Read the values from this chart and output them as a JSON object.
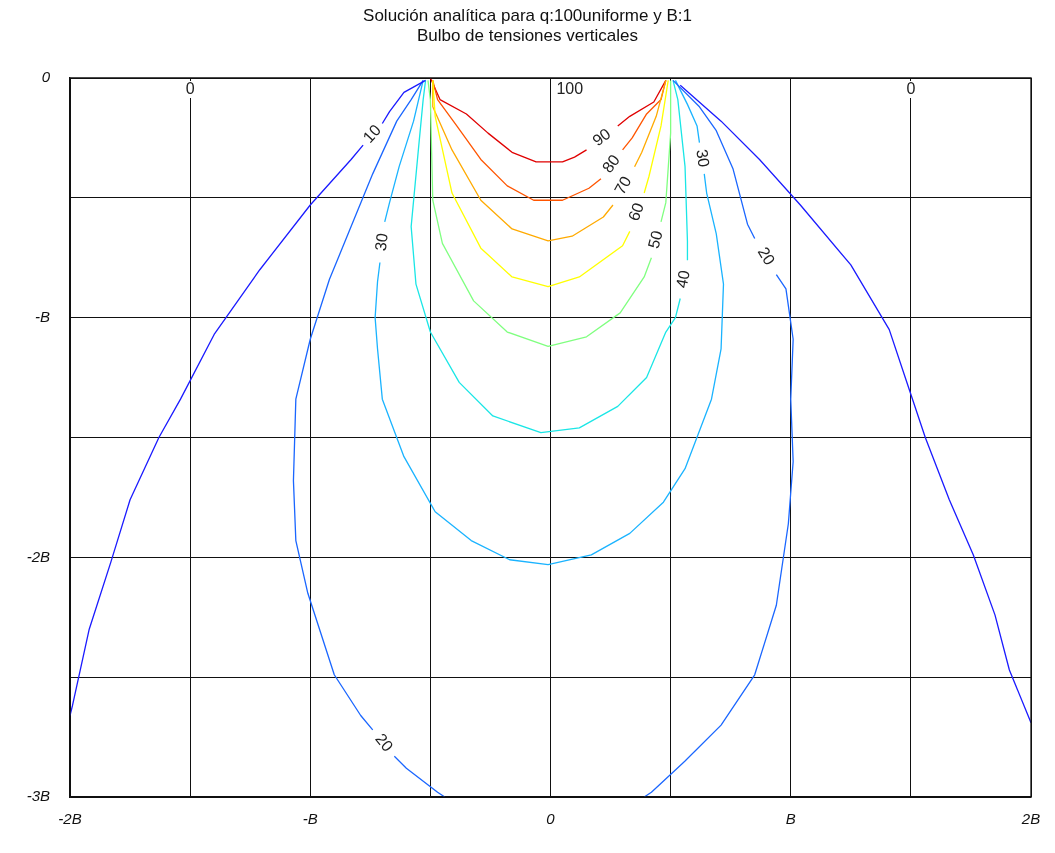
{
  "chart_data": {
    "type": "line",
    "title": "Solución analítica para q:100uniforme y B:1",
    "subtitle": "Bulbo de tensiones verticales",
    "xlim": [
      -2,
      2
    ],
    "ylim": [
      -3,
      0
    ],
    "xticks": [
      {
        "value": -2,
        "label": "-2B"
      },
      {
        "value": -1.5,
        "label": null
      },
      {
        "value": -1,
        "label": "-B"
      },
      {
        "value": -0.5,
        "label": null
      },
      0,
      {
        "value": 0.5,
        "label": null
      },
      {
        "value": 1,
        "label": "B"
      },
      {
        "value": 1.5,
        "label": null
      },
      {
        "value": 2,
        "label": "2B"
      }
    ],
    "yticks": [
      0,
      {
        "value": -0.5,
        "label": null
      },
      {
        "value": -1,
        "label": "-B"
      },
      {
        "value": -1.5,
        "label": null
      },
      {
        "value": -2,
        "label": "-2B"
      },
      {
        "value": -2.5,
        "label": null
      },
      {
        "value": -3,
        "label": "-3B"
      }
    ],
    "grid": true,
    "legend": false,
    "marker": "none",
    "line_style": "solid",
    "series": [
      {
        "name": "10",
        "color": "#1a1aff",
        "x": [
          -0.52,
          -0.61,
          -0.67,
          -0.7,
          null,
          -0.78,
          -0.83,
          -1.0,
          -1.21,
          -1.4,
          -1.54,
          -1.63,
          -1.75,
          -1.83,
          -1.92,
          -1.99,
          -2.0
        ],
        "values": [
          -0.01,
          -0.06,
          -0.14,
          -0.19,
          null,
          -0.28,
          -0.34,
          -0.53,
          -0.8,
          -1.07,
          -1.34,
          -1.5,
          -1.76,
          -2.02,
          -2.3,
          -2.62,
          -2.66
        ]
      },
      {
        "color": "#1a1aff",
        "x": [
          0.54,
          0.71,
          0.87,
          1.04,
          1.25,
          1.41,
          1.48,
          1.56,
          1.66,
          1.76,
          1.85,
          1.91,
          2.0
        ],
        "values": [
          -0.03,
          -0.18,
          -0.34,
          -0.53,
          -0.78,
          -1.05,
          -1.26,
          -1.5,
          -1.76,
          -1.99,
          -2.24,
          -2.47,
          -2.69
        ]
      },
      {
        "name": "20",
        "color": "#1a66ff",
        "x": [
          -0.53,
          -0.58,
          -0.64,
          -0.74,
          -0.83,
          -0.92,
          -1.0,
          -1.06,
          -1.07,
          -1.06,
          -1.01,
          -0.9,
          -0.79,
          -0.74,
          null,
          -0.65,
          -0.6,
          -0.47,
          -0.44
        ],
        "values": [
          -0.01,
          -0.09,
          -0.18,
          -0.4,
          -0.62,
          -0.84,
          -1.09,
          -1.34,
          -1.68,
          -1.93,
          -2.15,
          -2.49,
          -2.66,
          -2.72,
          null,
          -2.83,
          -2.88,
          -2.98,
          -3.0
        ]
      },
      {
        "name": "20",
        "color": "#1a66ff",
        "x": [
          0.39,
          0.42,
          0.56,
          0.71,
          0.85,
          0.94,
          0.99,
          1.01,
          1.0,
          1.01,
          0.98,
          0.94,
          null,
          0.85,
          0.82,
          0.76,
          0.69,
          0.62,
          0.51
        ],
        "values": [
          -3.0,
          -2.98,
          -2.85,
          -2.7,
          -2.49,
          -2.2,
          -1.86,
          -1.6,
          -1.34,
          -1.09,
          -0.88,
          -0.82,
          null,
          -0.67,
          -0.61,
          -0.38,
          -0.22,
          -0.12,
          -0.01
        ]
      },
      {
        "name": "30",
        "color": "#1ab3ff",
        "x": [
          -0.53,
          -0.57,
          -0.63,
          -0.67,
          -0.69,
          null,
          -0.71,
          -0.72,
          -0.73,
          -0.72,
          -0.7,
          -0.61,
          -0.48,
          -0.33,
          -0.17,
          -0.01,
          0.17,
          0.33,
          0.47,
          0.56,
          0.67,
          0.71,
          0.72,
          0.69,
          0.65,
          0.64,
          null,
          0.62,
          0.61,
          0.57,
          0.52
        ],
        "values": [
          -0.01,
          -0.18,
          -0.37,
          -0.52,
          -0.6,
          null,
          -0.77,
          -0.85,
          -1.0,
          -1.13,
          -1.34,
          -1.58,
          -1.81,
          -1.93,
          -2.01,
          -2.03,
          -1.99,
          -1.9,
          -1.77,
          -1.63,
          -1.34,
          -1.13,
          -0.86,
          -0.65,
          -0.48,
          -0.4,
          null,
          -0.27,
          -0.2,
          -0.11,
          -0.01
        ]
      },
      {
        "name": "40",
        "color": "#1ae6e6",
        "x": [
          -0.52,
          -0.53,
          -0.55,
          -0.58,
          -0.56,
          -0.5,
          -0.38,
          -0.24,
          -0.04,
          0.12,
          0.28,
          0.4,
          0.48,
          0.52,
          0.54,
          null,
          0.57,
          0.57,
          0.56,
          0.53,
          0.51
        ],
        "values": [
          -0.01,
          -0.09,
          -0.3,
          -0.62,
          -0.86,
          -1.06,
          -1.27,
          -1.41,
          -1.48,
          -1.46,
          -1.37,
          -1.25,
          -1.06,
          -1.0,
          -0.92,
          null,
          -0.76,
          -0.68,
          -0.37,
          -0.09,
          -0.01
        ]
      },
      {
        "name": "50",
        "color": "#80ff80",
        "x": [
          -0.51,
          -0.5,
          -0.49,
          -0.45,
          -0.32,
          -0.18,
          -0.01,
          0.15,
          0.29,
          0.39,
          0.42,
          null,
          0.46,
          0.48,
          0.5,
          0.5
        ],
        "values": [
          -0.01,
          -0.09,
          -0.51,
          -0.69,
          -0.93,
          -1.06,
          -1.12,
          -1.08,
          -0.98,
          -0.83,
          -0.75,
          null,
          -0.6,
          -0.52,
          -0.23,
          -0.01
        ]
      },
      {
        "name": "60",
        "color": "#ffff00",
        "x": [
          -0.49,
          -0.48,
          -0.41,
          -0.29,
          -0.16,
          -0.01,
          0.12,
          0.3,
          0.33,
          null,
          0.39,
          0.41,
          0.46,
          0.49
        ],
        "values": [
          -0.01,
          -0.16,
          -0.48,
          -0.71,
          -0.83,
          -0.87,
          -0.83,
          -0.7,
          -0.64,
          null,
          -0.48,
          -0.41,
          -0.2,
          -0.01
        ]
      },
      {
        "name": "70",
        "color": "#ffaa00",
        "x": [
          -0.49,
          -0.49,
          -0.41,
          -0.29,
          -0.16,
          -0.01,
          0.09,
          0.22,
          0.26,
          null,
          0.35,
          0.38,
          0.44,
          0.48
        ],
        "values": [
          -0.01,
          -0.12,
          -0.3,
          -0.51,
          -0.63,
          -0.68,
          -0.66,
          -0.58,
          -0.53,
          null,
          -0.37,
          -0.31,
          -0.16,
          -0.01
        ]
      },
      {
        "name": "80",
        "color": "#ff5500",
        "x": [
          -0.49,
          -0.47,
          -0.39,
          -0.29,
          -0.18,
          -0.07,
          0.05,
          0.16,
          0.21,
          null,
          0.3,
          0.34,
          0.4,
          0.46,
          0.48
        ],
        "values": [
          -0.01,
          -0.09,
          -0.2,
          -0.34,
          -0.45,
          -0.51,
          -0.51,
          -0.46,
          -0.42,
          null,
          -0.3,
          -0.25,
          -0.15,
          -0.09,
          -0.01
        ]
      },
      {
        "name": "90",
        "color": "#e00000",
        "x": [
          -0.5,
          -0.46,
          -0.35,
          -0.26,
          -0.16,
          -0.06,
          0.05,
          0.1,
          0.15,
          null,
          0.28,
          0.33,
          0.43,
          0.48
        ],
        "values": [
          0,
          -0.09,
          -0.15,
          -0.23,
          -0.31,
          -0.35,
          -0.35,
          -0.33,
          -0.3,
          null,
          -0.2,
          -0.16,
          -0.1,
          -0.01
        ]
      }
    ],
    "annotations": [
      "0",
      "100",
      "0"
    ]
  }
}
